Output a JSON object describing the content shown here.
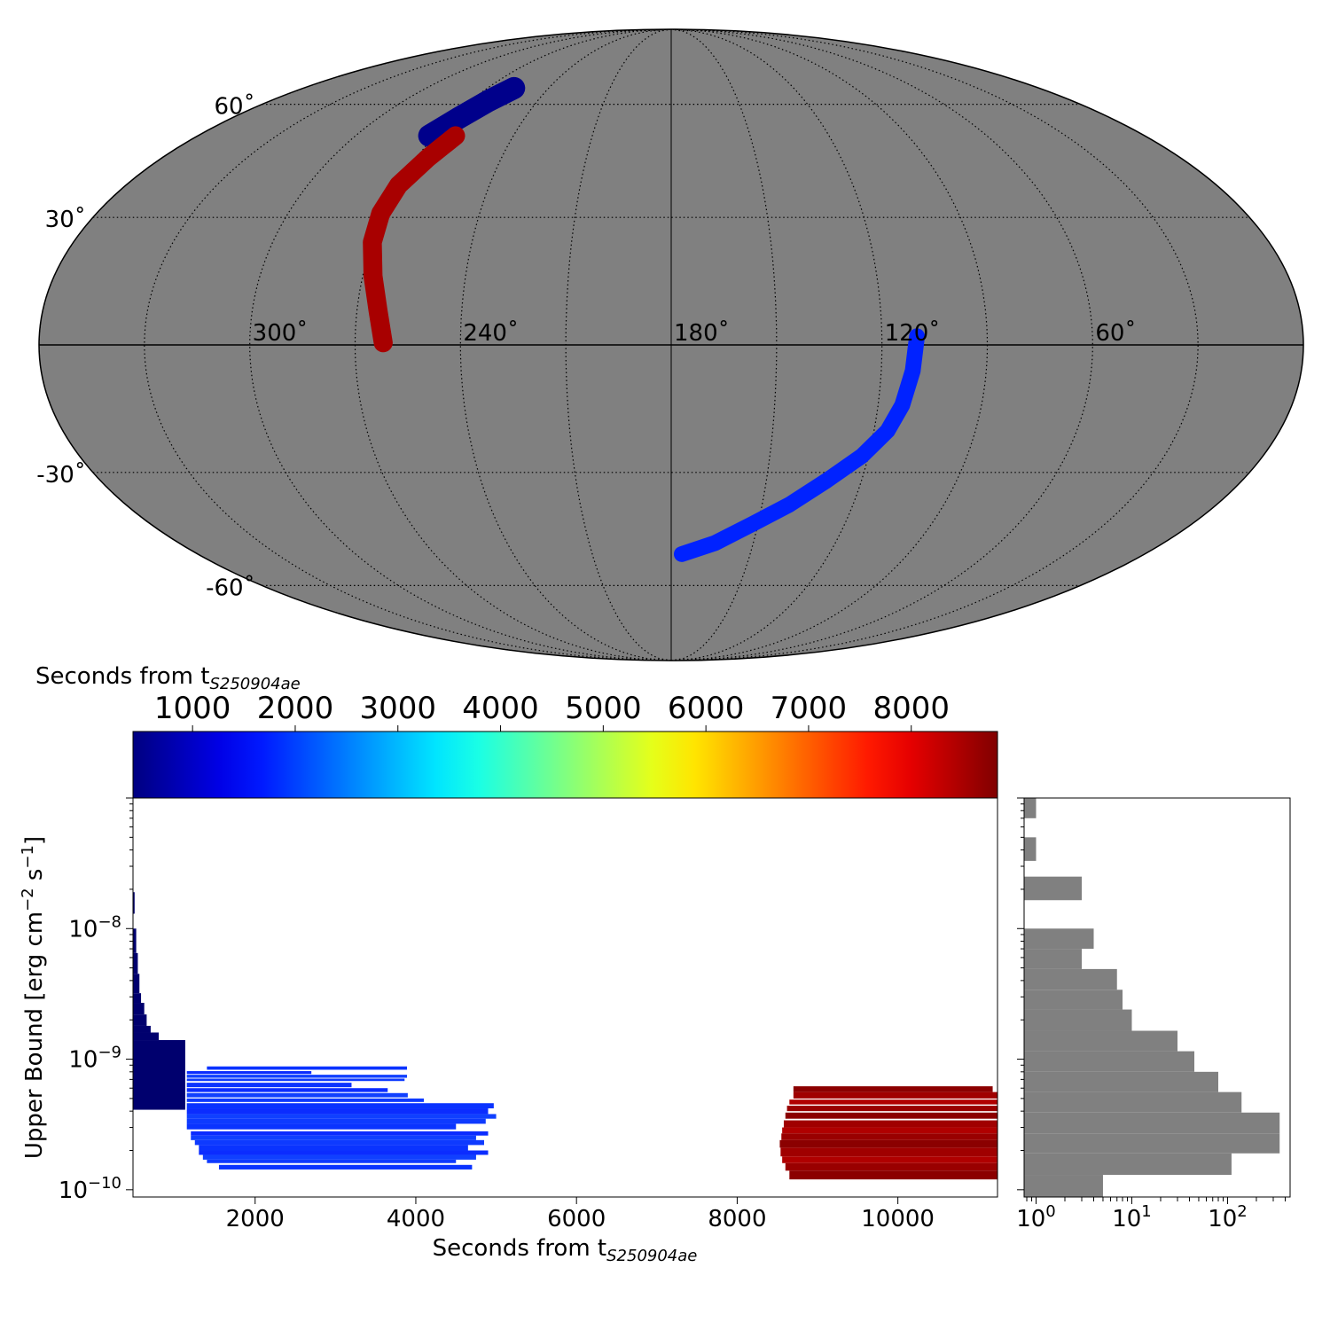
{
  "chart_data": [
    {
      "type": "scatter",
      "subtype": "mollweide-sky-map",
      "projection": "mollweide",
      "background_color": "#808080",
      "grid": true,
      "lat_tick_labels": [
        "60˚",
        "30˚",
        "-30˚",
        "-60˚"
      ],
      "lat_ticks": [
        60,
        30,
        -30,
        -60
      ],
      "lon_tick_labels": [
        "300˚",
        "240˚",
        "180˚",
        "120˚",
        "60˚"
      ],
      "lon_ticks": [
        300,
        240,
        180,
        120,
        60
      ],
      "regions": [
        {
          "label_color": "dark blue",
          "color": "#00008b",
          "seconds_from_trigger": 700,
          "path_lon_lat": [
            [
              272,
              51
            ],
            [
              267,
              56
            ],
            [
              262,
              61
            ],
            [
              257,
              65
            ]
          ],
          "width_deg": 7
        },
        {
          "label_color": "red",
          "color": "#a80000",
          "seconds_from_trigger": 8700,
          "path_lon_lat": [
            [
              262,
              0.5
            ],
            [
              264,
              8
            ],
            [
              267,
              16
            ],
            [
              270,
              24
            ],
            [
              271,
              31
            ],
            [
              270,
              38
            ],
            [
              266,
              45
            ],
            [
              262,
              51
            ]
          ],
          "width_deg": 6
        },
        {
          "label_color": "blue",
          "color": "#0022ff",
          "seconds_from_trigger": 1700,
          "path_lon_lat": [
            [
              110,
              2
            ],
            [
              111,
              -6
            ],
            [
              113,
              -14
            ],
            [
              116,
              -20
            ],
            [
              122,
              -26
            ],
            [
              131,
              -32
            ],
            [
              141,
              -38
            ],
            [
              152,
              -43
            ],
            [
              164,
              -48
            ],
            [
              176,
              -51
            ]
          ],
          "width_deg": 5
        }
      ]
    },
    {
      "type": "colorbar",
      "label": "Seconds from t",
      "label_subscript": "S250904ae",
      "colormap": "jet",
      "range": [
        420,
        8840
      ],
      "ticks": [
        1000,
        2000,
        3000,
        4000,
        5000,
        6000,
        7000,
        8000
      ],
      "tick_labels": [
        "1000",
        "2000",
        "3000",
        "4000",
        "5000",
        "6000",
        "7000",
        "8000"
      ]
    },
    {
      "type": "bar",
      "subtype": "horizontal-interval-bars",
      "xlabel": "Seconds from t",
      "xlabel_subscript": "S250904ae",
      "ylabel": "Upper Bound [erg cm",
      "ylabel_sup1": "−2",
      "ylabel_mid": " s",
      "ylabel_sup2": "−1",
      "ylabel_end": "]",
      "xlim": [
        480,
        11240
      ],
      "ylim": [
        8.8e-11,
        1e-07
      ],
      "y_scale": "log",
      "x_ticks": [
        2000,
        4000,
        6000,
        8000,
        10000
      ],
      "x_tick_labels": [
        "2000",
        "4000",
        "6000",
        "8000",
        "10000"
      ],
      "y_ticks": [
        1e-10,
        1e-09,
        1e-08
      ],
      "y_tick_base": "10",
      "y_tick_exps": [
        "−10",
        "−9",
        "−8"
      ],
      "groups": [
        {
          "name": "early",
          "color": "#00006e",
          "segments": [
            [
              480,
              500,
              1.9e-08,
              1.3e-08
            ],
            [
              480,
              520,
              1e-08,
              6.5e-09
            ],
            [
              480,
              540,
              6.5e-09,
              4.5e-09
            ],
            [
              480,
              560,
              4.5e-09,
              3.2e-09
            ],
            [
              480,
              580,
              3.2e-09,
              2.7e-09
            ],
            [
              480,
              620,
              2.7e-09,
              2.2e-09
            ],
            [
              480,
              650,
              2.2e-09,
              1.8e-09
            ],
            [
              480,
              700,
              1.8e-09,
              1.6e-09
            ],
            [
              480,
              800,
              1.6e-09,
              1.4e-09
            ],
            [
              480,
              1130,
              1.4e-09,
              4.1e-10
            ]
          ]
        },
        {
          "name": "blue",
          "color": "#0a33ff",
          "segments": [
            [
              1400,
              3890,
              8.8e-10,
              8.3e-10
            ],
            [
              1150,
              2700,
              8.1e-10,
              7.7e-10
            ],
            [
              1150,
              3890,
              7.6e-10,
              7.2e-10
            ],
            [
              1150,
              3860,
              7.1e-10,
              6.8e-10
            ],
            [
              1150,
              3200,
              6.6e-10,
              6.1e-10
            ],
            [
              1150,
              3650,
              6e-10,
              5.6e-10
            ],
            [
              1150,
              3900,
              5.5e-10,
              5.1e-10
            ],
            [
              1150,
              4100,
              5e-10,
              4.7e-10
            ],
            [
              1150,
              4970,
              4.6e-10,
              4.2e-10
            ],
            [
              1150,
              4900,
              4.2e-10,
              3.8e-10
            ],
            [
              1150,
              5000,
              3.8e-10,
              3.5e-10
            ],
            [
              1150,
              4870,
              3.5e-10,
              3.2e-10
            ],
            [
              1150,
              4500,
              3.2e-10,
              2.9e-10
            ],
            [
              1200,
              4900,
              2.8e-10,
              2.6e-10
            ],
            [
              1200,
              4750,
              2.6e-10,
              2.4e-10
            ],
            [
              1250,
              4850,
              2.4e-10,
              2.2e-10
            ],
            [
              1300,
              4650,
              2.2e-10,
              2e-10
            ],
            [
              1300,
              4900,
              2e-10,
              1.85e-10
            ],
            [
              1350,
              4750,
              1.85e-10,
              1.7e-10
            ],
            [
              1400,
              4500,
              1.7e-10,
              1.6e-10
            ],
            [
              1550,
              4700,
              1.55e-10,
              1.43e-10
            ]
          ]
        },
        {
          "name": "red",
          "color": "#a80000",
          "segments": [
            [
              8700,
              11180,
              6.2e-10,
              5.6e-10
            ],
            [
              8700,
              11240,
              5.6e-10,
              5e-10
            ],
            [
              8650,
              11240,
              4.9e-10,
              4.5e-10
            ],
            [
              8620,
              11240,
              4.4e-10,
              4e-10
            ],
            [
              8600,
              11240,
              3.9e-10,
              3.5e-10
            ],
            [
              8580,
              11240,
              3.4e-10,
              3e-10
            ],
            [
              8560,
              11240,
              3e-10,
              2.7e-10
            ],
            [
              8550,
              11240,
              2.7e-10,
              2.4e-10
            ],
            [
              8530,
              11240,
              2.4e-10,
              2.1e-10
            ],
            [
              8540,
              11240,
              2.1e-10,
              1.8e-10
            ],
            [
              8560,
              11240,
              1.8e-10,
              1.6e-10
            ],
            [
              8600,
              11240,
              1.6e-10,
              1.4e-10
            ],
            [
              8650,
              11240,
              1.4e-10,
              1.2e-10
            ]
          ]
        }
      ]
    },
    {
      "type": "bar",
      "subtype": "horizontal-histogram",
      "x_scale": "log",
      "xlim": [
        0.75,
        450
      ],
      "ylim": [
        8.8e-11,
        1e-07
      ],
      "y_scale": "log",
      "bar_color": "#808080",
      "x_ticks": [
        1,
        10,
        100
      ],
      "x_tick_base": "10",
      "x_tick_exps": [
        "0",
        "1",
        "2"
      ],
      "bins": [
        {
          "y_top": 1e-07,
          "y_bottom": 7e-08,
          "count": 1
        },
        {
          "y_top": 5e-08,
          "y_bottom": 3.3e-08,
          "count": 1
        },
        {
          "y_top": 2.5e-08,
          "y_bottom": 1.65e-08,
          "count": 3
        },
        {
          "y_top": 1e-08,
          "y_bottom": 7e-09,
          "count": 4
        },
        {
          "y_top": 7e-09,
          "y_bottom": 4.9e-09,
          "count": 3
        },
        {
          "y_top": 4.9e-09,
          "y_bottom": 3.4e-09,
          "count": 7
        },
        {
          "y_top": 3.4e-09,
          "y_bottom": 2.4e-09,
          "count": 8
        },
        {
          "y_top": 2.4e-09,
          "y_bottom": 1.65e-09,
          "count": 10
        },
        {
          "y_top": 1.65e-09,
          "y_bottom": 1.15e-09,
          "count": 30
        },
        {
          "y_top": 1.15e-09,
          "y_bottom": 8e-10,
          "count": 45
        },
        {
          "y_top": 8e-10,
          "y_bottom": 5.6e-10,
          "count": 80
        },
        {
          "y_top": 5.6e-10,
          "y_bottom": 3.9e-10,
          "count": 140
        },
        {
          "y_top": 3.9e-10,
          "y_bottom": 2.7e-10,
          "count": 350
        },
        {
          "y_top": 2.7e-10,
          "y_bottom": 1.9e-10,
          "count": 350
        },
        {
          "y_top": 1.9e-10,
          "y_bottom": 1.3e-10,
          "count": 110
        },
        {
          "y_top": 1.3e-10,
          "y_bottom": 8.8e-11,
          "count": 5
        }
      ]
    }
  ]
}
